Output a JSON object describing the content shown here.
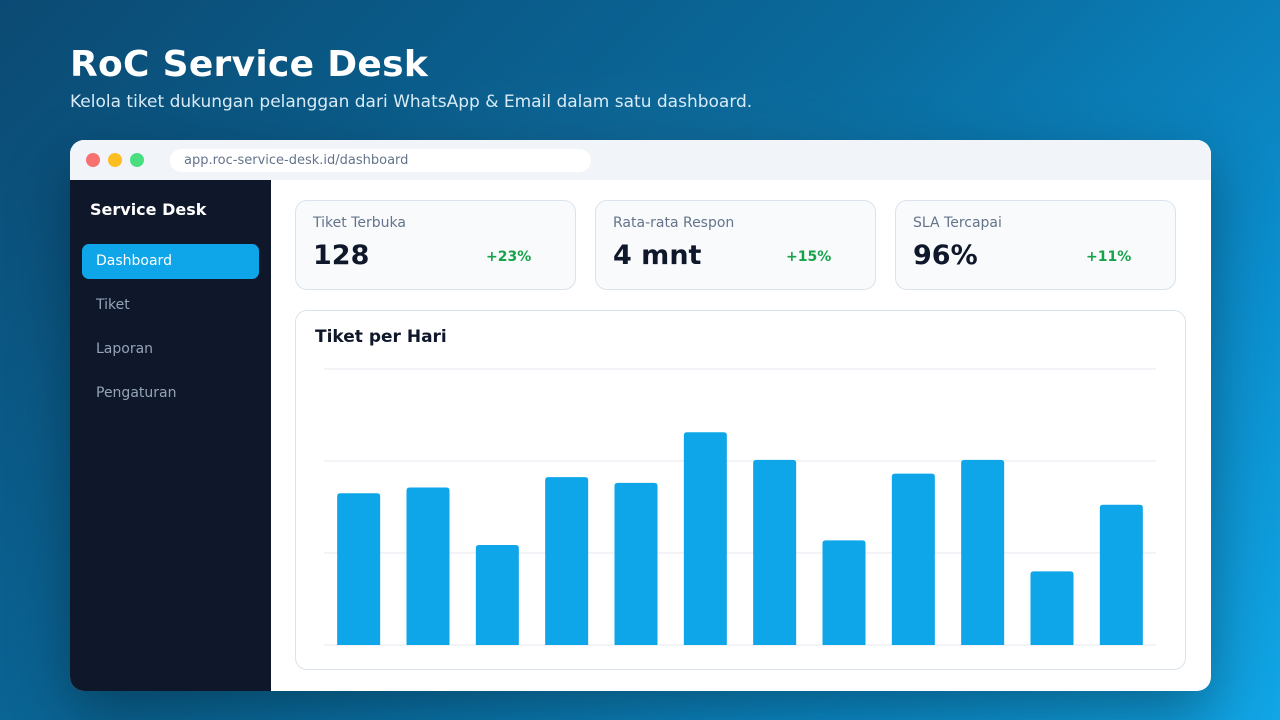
{
  "hero": {
    "title": "RoC Service Desk",
    "subtitle": "Kelola tiket dukungan pelanggan dari WhatsApp & Email dalam satu dashboard."
  },
  "browser": {
    "url": "app.roc-service-desk.id/dashboard"
  },
  "sidebar": {
    "brand": "Service Desk",
    "items": [
      {
        "label": "Dashboard",
        "active": true
      },
      {
        "label": "Tiket",
        "active": false
      },
      {
        "label": "Laporan",
        "active": false
      },
      {
        "label": "Pengaturan",
        "active": false
      }
    ]
  },
  "stats": [
    {
      "label": "Tiket Terbuka",
      "value": "128",
      "delta": "+23%"
    },
    {
      "label": "Rata-rata Respon",
      "value": "4 mnt",
      "delta": "+15%"
    },
    {
      "label": "SLA Tercapai",
      "value": "96%",
      "delta": "+11%"
    }
  ],
  "colors": {
    "accent": "#0ea5e9",
    "sidebar_bg": "#0f172a",
    "positive": "#16a34a"
  },
  "chart_data": {
    "type": "bar",
    "title": "Tiket per Hari",
    "categories": [
      "",
      "",
      "",
      "",
      "",
      "",
      "",
      "",
      "",
      "",
      "",
      ""
    ],
    "values": [
      66,
      68.5,
      43.5,
      73,
      70.5,
      92.5,
      80.5,
      45.5,
      74.5,
      80.5,
      32,
      61
    ],
    "ylim": [
      0,
      120
    ],
    "grid": true,
    "color": "#0ea5e9"
  }
}
